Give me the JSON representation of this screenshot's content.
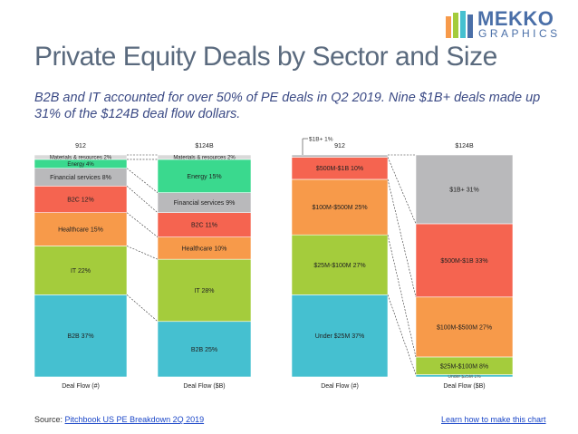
{
  "header": {
    "title": "Private Equity Deals by Sector and Size",
    "subtitle": "B2B and IT accounted for over 50% of PE deals in Q2 2019.  Nine $1B+ deals made up 31% of the $124B deal flow dollars."
  },
  "logo": {
    "word1": "MEKKO",
    "word2": "GRAPHICS"
  },
  "footer": {
    "source_prefix": "Source: ",
    "source_link": "Pitchbook US PE Breakdown 2Q 2019",
    "learn_link": "Learn how to make this chart"
  },
  "colors": {
    "teal": "#45c0d0",
    "green": "#a4cc3c",
    "orange": "#f79a4a",
    "red": "#f56450",
    "gray": "#b9b9bb",
    "mint": "#3ad98e",
    "lightgray": "#d9d9d9"
  },
  "chart_data": [
    {
      "type": "stacked-bar-100",
      "name": "By Sector",
      "x_labels": [
        "Deal Flow (#)",
        "Deal Flow ($B)"
      ],
      "totals": [
        "912",
        "$124B"
      ],
      "categories": [
        "B2B",
        "IT",
        "Healthcare",
        "B2C",
        "Financial services",
        "Energy",
        "Materials & resources"
      ],
      "colors": [
        "#45c0d0",
        "#a4cc3c",
        "#f79a4a",
        "#f56450",
        "#b9b9bb",
        "#3ad98e",
        "#d9d9d9"
      ],
      "series": [
        {
          "name": "Deal Flow (#)",
          "values": [
            37,
            22,
            15,
            12,
            8,
            4,
            2
          ],
          "labels": [
            "B2B 37%",
            "IT 22%",
            "Healthcare 15%",
            "B2C 12%",
            "Financial services 8%",
            "Energy 4%",
            "Materials & resources 2%"
          ]
        },
        {
          "name": "Deal Flow ($B)",
          "values": [
            25,
            28,
            10,
            11,
            9,
            15,
            2
          ],
          "labels": [
            "B2B 25%",
            "IT 28%",
            "Healthcare 10%",
            "B2C 11%",
            "Financial services 9%",
            "Energy 15%",
            "Materials & resources 2%"
          ]
        }
      ]
    },
    {
      "type": "stacked-bar-100",
      "name": "By Size",
      "x_labels": [
        "Deal Flow (#)",
        "Deal Flow ($B)"
      ],
      "totals": [
        "912",
        "$124B"
      ],
      "categories": [
        "Under $25M",
        "$25M-$100M",
        "$100M-$500M",
        "$500M-$1B",
        "$1B+"
      ],
      "colors": [
        "#45c0d0",
        "#a4cc3c",
        "#f79a4a",
        "#f56450",
        "#b9b9bb"
      ],
      "series": [
        {
          "name": "Deal Flow (#)",
          "values": [
            37,
            27,
            25,
            10,
            1
          ],
          "labels": [
            "Under $25M 37%",
            "$25M-$100M 27%",
            "$100M-$500M 25%",
            "$500M-$1B 10%",
            "$1B+ 1%"
          ]
        },
        {
          "name": "Deal Flow ($B)",
          "values": [
            1,
            8,
            27,
            33,
            31
          ],
          "labels": [
            "Under $25M 1%",
            "$25M-$100M 8%",
            "$100M-$500M 27%",
            "$500M-$1B 33%",
            "$1B+ 31%"
          ]
        }
      ]
    }
  ]
}
